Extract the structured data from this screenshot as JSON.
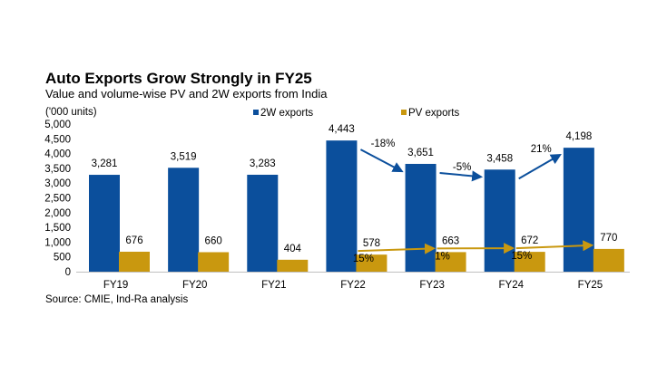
{
  "chart_data": {
    "type": "bar",
    "title": "Auto Exports Grow Strongly in FY25",
    "subtitle": "Value and volume-wise PV and 2W exports from India",
    "ylabel": "('000 units)",
    "xlabel": "",
    "source": "Source: CMIE, Ind-Ra analysis",
    "categories": [
      "FY19",
      "FY20",
      "FY21",
      "FY22",
      "FY23",
      "FY24",
      "FY25"
    ],
    "ylim": [
      0,
      5000
    ],
    "yticks": [
      0,
      500,
      1000,
      1500,
      2000,
      2500,
      3000,
      3500,
      4000,
      4500,
      5000
    ],
    "ytick_labels": [
      "0",
      "500",
      "1,000",
      "1,500",
      "2,000",
      "2,500",
      "3,000",
      "3,500",
      "4,000",
      "4,500",
      "5,000"
    ],
    "legend_position": "top",
    "grid": false,
    "series": [
      {
        "name": "2W exports",
        "color": "#0B4F9C",
        "values": [
          3281,
          3519,
          3283,
          4443,
          3651,
          3458,
          4198
        ],
        "labels": [
          "3,281",
          "3,519",
          "3,283",
          "4,443",
          "3,651",
          "3,458",
          "4,198"
        ]
      },
      {
        "name": "PV exports",
        "color": "#C9980F",
        "values": [
          676,
          660,
          404,
          578,
          663,
          672,
          770
        ],
        "labels": [
          "676",
          "660",
          "404",
          "578",
          "663",
          "672",
          "770"
        ]
      }
    ],
    "annotations": [
      {
        "series": 0,
        "from": 3,
        "to": 4,
        "text": "-18%"
      },
      {
        "series": 0,
        "from": 4,
        "to": 5,
        "text": "-5%"
      },
      {
        "series": 0,
        "from": 5,
        "to": 6,
        "text": "21%"
      },
      {
        "series": 1,
        "from": 3,
        "to": 4,
        "text": "15%"
      },
      {
        "series": 1,
        "from": 4,
        "to": 5,
        "text": "1%"
      },
      {
        "series": 1,
        "from": 5,
        "to": 6,
        "text": "15%"
      }
    ]
  }
}
